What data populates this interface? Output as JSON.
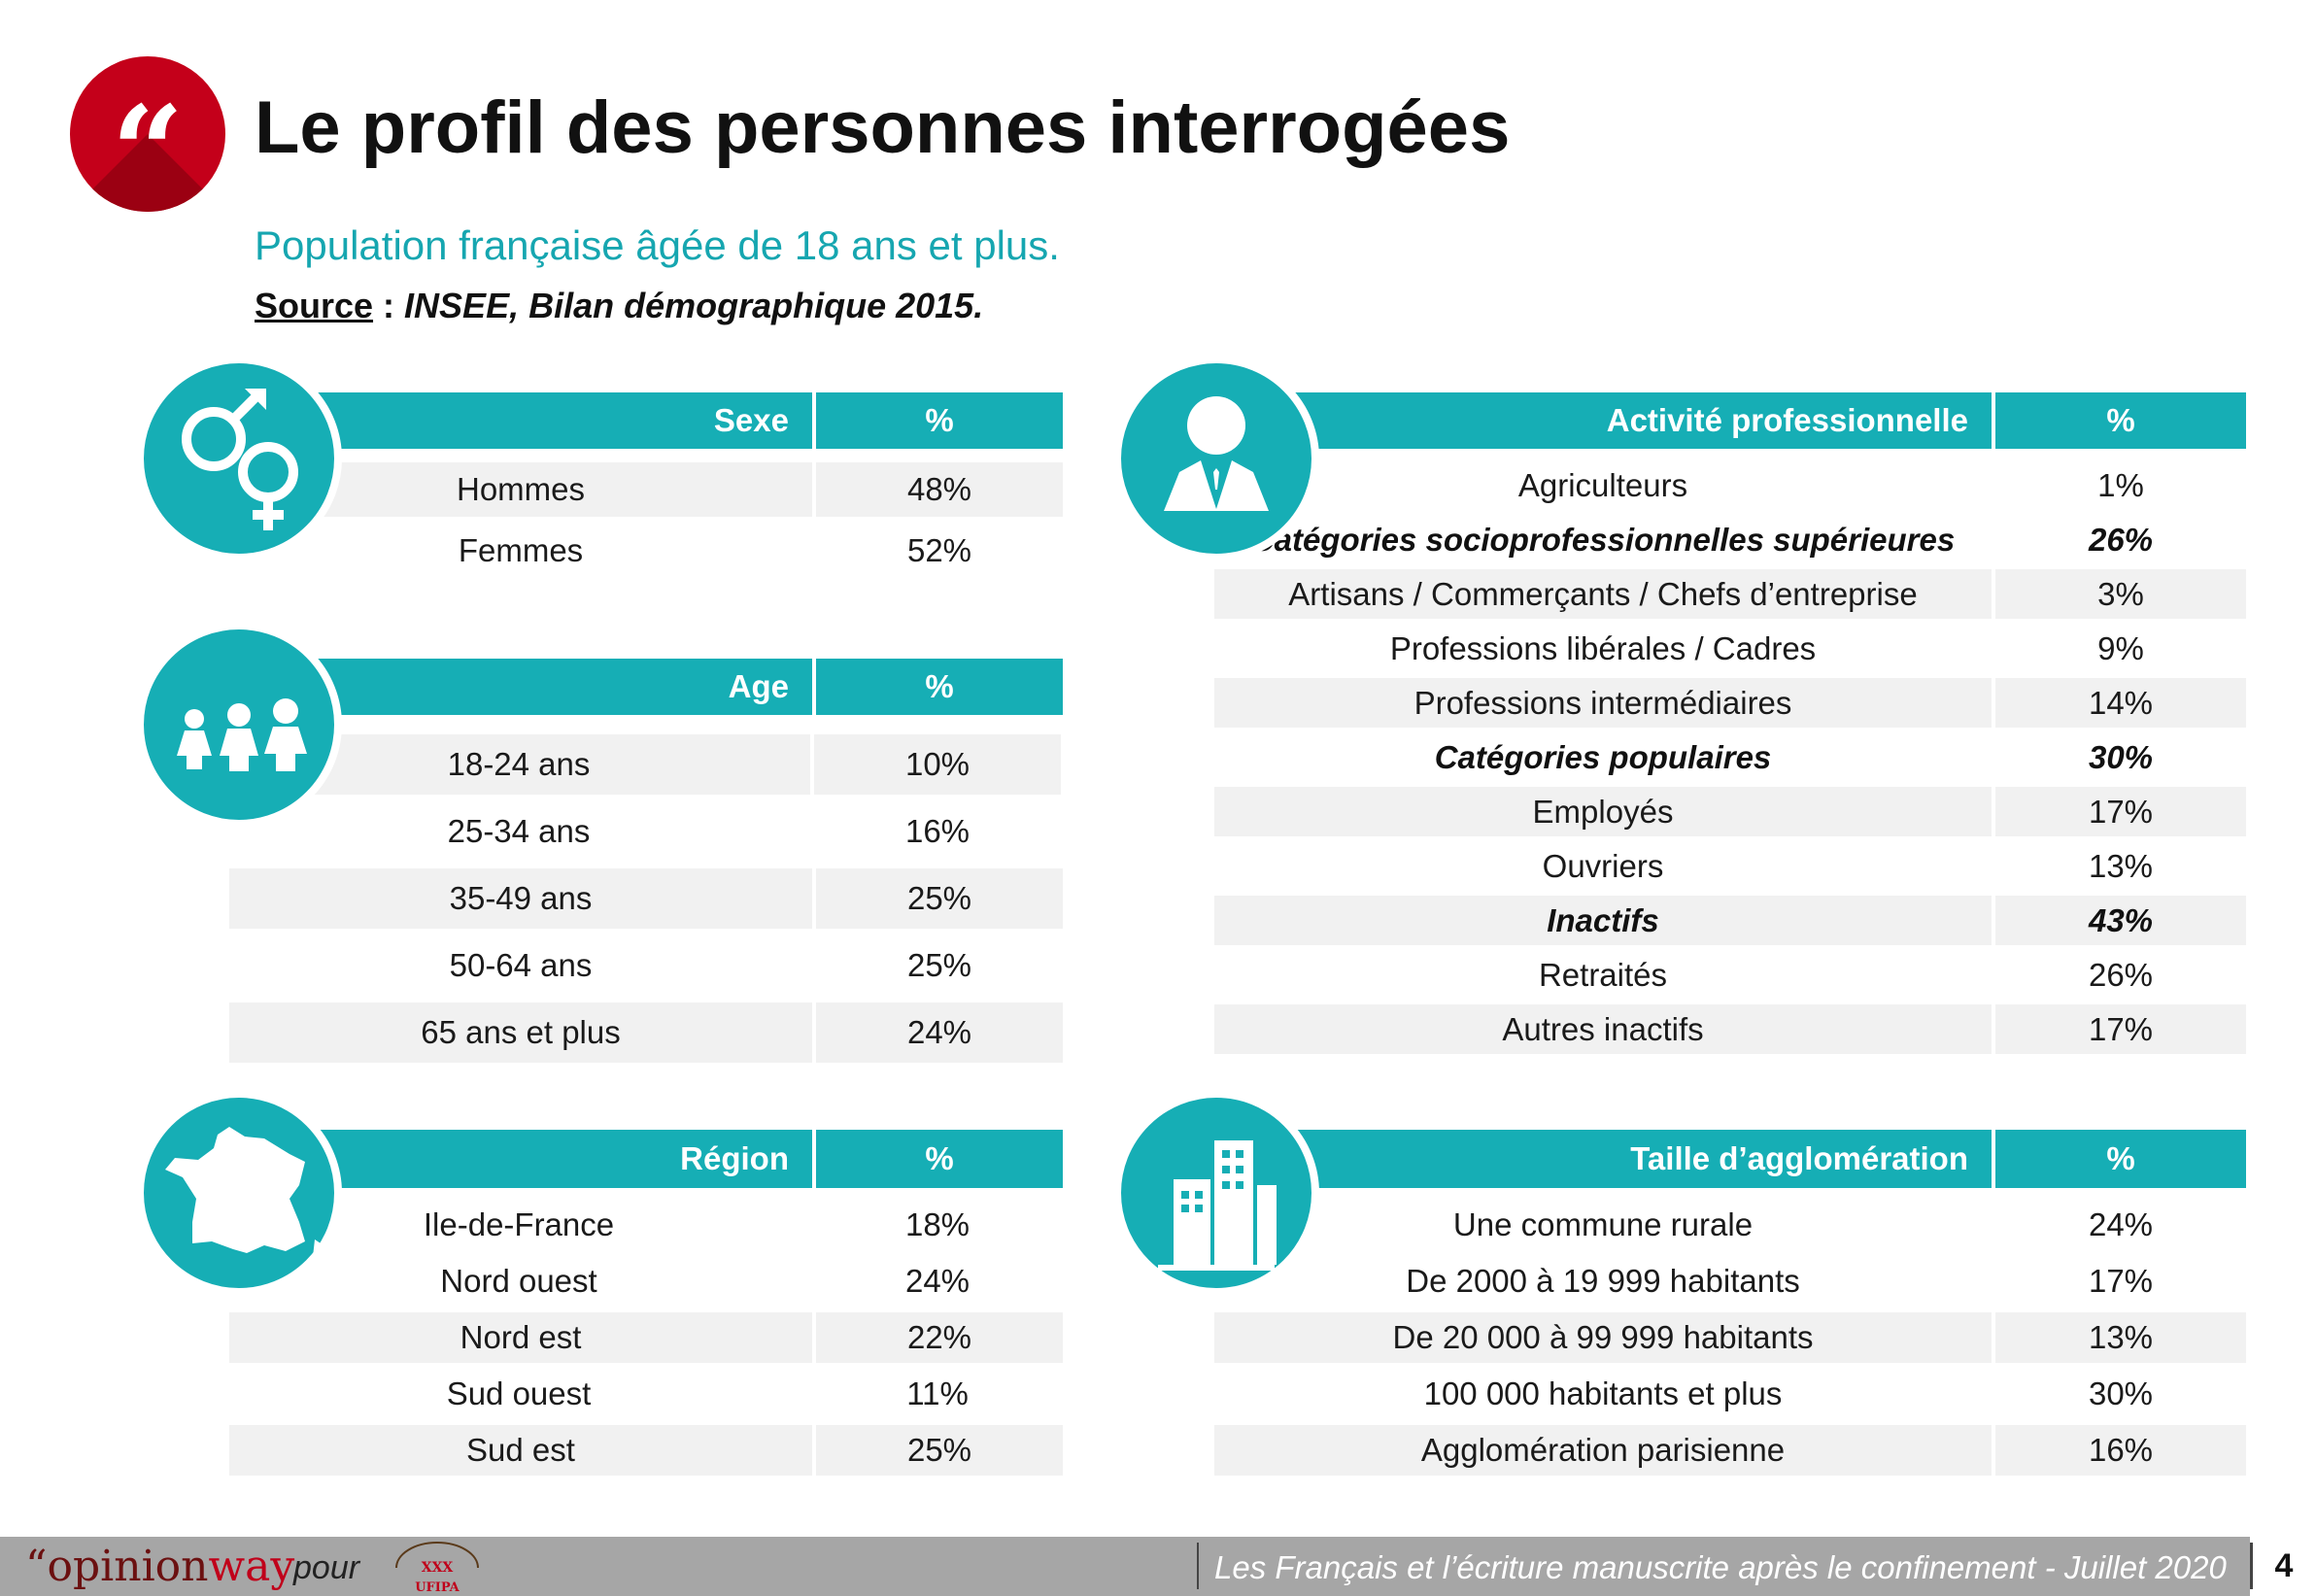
{
  "header": {
    "title": "Le profil des personnes interrogées",
    "subtitle": "Population française âgée de 18 ans et plus.",
    "source_label": "Source",
    "source_sep": " : ",
    "source_value": "INSEE, Bilan démographique 2015.",
    "quote_mark": "“",
    "badge_icon": "quote-icon",
    "accent_color": "#c4001a",
    "teal_color": "#16aeb5"
  },
  "sexe": {
    "icon": "gender-icon",
    "header": "Sexe",
    "pct_header": "%",
    "rows": [
      {
        "label": "Hommes",
        "value": "48%"
      },
      {
        "label": "Femmes",
        "value": "52%"
      }
    ]
  },
  "age": {
    "icon": "people-icon",
    "header": "Age",
    "pct_header": "%",
    "rows": [
      {
        "label": "18-24 ans",
        "value": "10%"
      },
      {
        "label": "25-34 ans",
        "value": "16%"
      },
      {
        "label": "35-49 ans",
        "value": "25%"
      },
      {
        "label": "50-64 ans",
        "value": "25%"
      },
      {
        "label": "65 ans et plus",
        "value": "24%"
      }
    ]
  },
  "region": {
    "icon": "france-map-icon",
    "header": "Région",
    "pct_header": "%",
    "rows": [
      {
        "label": "Ile-de-France",
        "value": "18%"
      },
      {
        "label": "Nord ouest",
        "value": "24%"
      },
      {
        "label": "Nord est",
        "value": "22%"
      },
      {
        "label": "Sud ouest",
        "value": "11%"
      },
      {
        "label": "Sud est",
        "value": "25%"
      }
    ]
  },
  "activite": {
    "icon": "businessman-icon",
    "header": "Activité professionnelle",
    "pct_header": "%",
    "rows": [
      {
        "label": "Agriculteurs",
        "value": "1%"
      },
      {
        "label": "Catégories socioprofessionnelles supérieures",
        "value": "26%"
      },
      {
        "label": "Artisans / Commerçants / Chefs d’entreprise",
        "value": "3%"
      },
      {
        "label": "Professions libérales / Cadres",
        "value": "9%"
      },
      {
        "label": "Professions intermédiaires",
        "value": "14%"
      },
      {
        "label": "Catégories populaires",
        "value": "30%"
      },
      {
        "label": "Employés",
        "value": "17%"
      },
      {
        "label": "Ouvriers",
        "value": "13%"
      },
      {
        "label": "Inactifs",
        "value": "43%"
      },
      {
        "label": "Retraités",
        "value": "26%"
      },
      {
        "label": "Autres inactifs",
        "value": "17%"
      }
    ]
  },
  "agglo": {
    "icon": "buildings-icon",
    "header": "Taille d’agglomération",
    "pct_header": "%",
    "rows": [
      {
        "label": "Une commune rurale",
        "value": "24%"
      },
      {
        "label": "De 2000 à 19 999 habitants",
        "value": "17%"
      },
      {
        "label": "De 20 000 à 99 999 habitants",
        "value": "13%"
      },
      {
        "label": "100 000 habitants et plus",
        "value": "30%"
      },
      {
        "label": "Agglomération parisienne",
        "value": "16%"
      }
    ]
  },
  "footer": {
    "logo_quote": "“",
    "logo_opinion": "opinion",
    "logo_way": "way",
    "pour": "pour",
    "partner_logo_text": "UFIPA",
    "caption": "Les Français et l’écriture manuscrite après le confinement - Juillet 2020",
    "page_number": "4"
  }
}
